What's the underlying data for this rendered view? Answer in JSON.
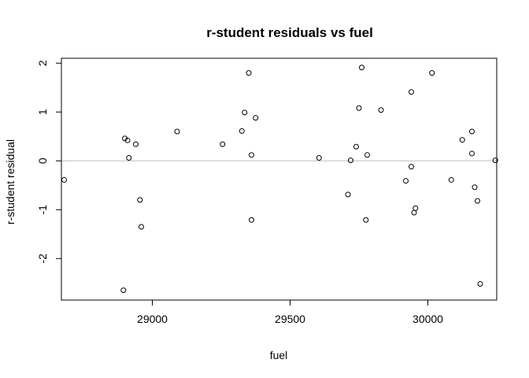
{
  "chart_data": {
    "type": "scatter",
    "title": "r-student residuals vs fuel",
    "xlabel": "fuel",
    "ylabel": "r-student residual",
    "xlim": [
      28670,
      30250
    ],
    "ylim": [
      -2.85,
      2.1
    ],
    "x_ticks": [
      29000,
      29500,
      30000
    ],
    "y_ticks": [
      -2,
      -1,
      0,
      1,
      2
    ],
    "reference_line_y": 0,
    "reference_line_color": "#bebebe",
    "point_color": "#000000",
    "grid": false,
    "points": [
      {
        "x": 28680,
        "y": -0.39
      },
      {
        "x": 28895,
        "y": -2.65
      },
      {
        "x": 28900,
        "y": 0.46
      },
      {
        "x": 28910,
        "y": 0.42
      },
      {
        "x": 28915,
        "y": 0.06
      },
      {
        "x": 28940,
        "y": 0.34
      },
      {
        "x": 28955,
        "y": -0.8
      },
      {
        "x": 28960,
        "y": -1.35
      },
      {
        "x": 29090,
        "y": 0.6
      },
      {
        "x": 29255,
        "y": 0.34
      },
      {
        "x": 29325,
        "y": 0.61
      },
      {
        "x": 29335,
        "y": 0.99
      },
      {
        "x": 29350,
        "y": 1.8
      },
      {
        "x": 29360,
        "y": -1.21
      },
      {
        "x": 29360,
        "y": 0.12
      },
      {
        "x": 29375,
        "y": 0.88
      },
      {
        "x": 29605,
        "y": 0.06
      },
      {
        "x": 29710,
        "y": -0.69
      },
      {
        "x": 29720,
        "y": 0.01
      },
      {
        "x": 29740,
        "y": 0.29
      },
      {
        "x": 29750,
        "y": 1.08
      },
      {
        "x": 29760,
        "y": 1.91
      },
      {
        "x": 29775,
        "y": -1.21
      },
      {
        "x": 29780,
        "y": 0.12
      },
      {
        "x": 29830,
        "y": 1.04
      },
      {
        "x": 29920,
        "y": -0.41
      },
      {
        "x": 29940,
        "y": 1.41
      },
      {
        "x": 29940,
        "y": -0.12
      },
      {
        "x": 29950,
        "y": -1.06
      },
      {
        "x": 29955,
        "y": -0.97
      },
      {
        "x": 30015,
        "y": 1.8
      },
      {
        "x": 30085,
        "y": -0.39
      },
      {
        "x": 30125,
        "y": 0.43
      },
      {
        "x": 30160,
        "y": 0.6
      },
      {
        "x": 30160,
        "y": 0.15
      },
      {
        "x": 30170,
        "y": -0.54
      },
      {
        "x": 30180,
        "y": -0.82
      },
      {
        "x": 30190,
        "y": -2.52
      },
      {
        "x": 30245,
        "y": 0.01
      }
    ]
  }
}
